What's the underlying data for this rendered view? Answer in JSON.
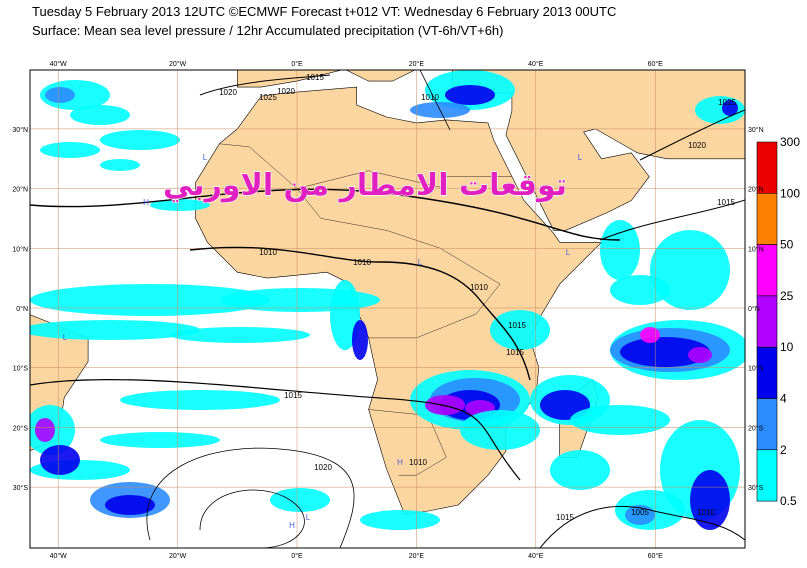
{
  "header": {
    "line1": "Tuesday 5 February 2013 12UTC ©ECMWF Forecast t+012 VT: Wednesday 6 February 2013 00UTC",
    "line2": "Surface: Mean sea level pressure / 12hr Accumulated precipitation (VT-6h/VT+6h)"
  },
  "overlay_text": "توقعات الامطار من الاوربي",
  "map": {
    "lon_labels": [
      "40°W",
      "20°W",
      "0°E",
      "20°E",
      "40°E",
      "60°E"
    ],
    "lat_labels": [
      "30°N",
      "20°N",
      "10°N",
      "0°N",
      "10°S",
      "20°S",
      "30°S"
    ],
    "isobar_labels": [
      "1015",
      "1020",
      "1025",
      "1020",
      "1010",
      "1025",
      "1020",
      "1015",
      "1010",
      "1010",
      "1010",
      "1015",
      "1015",
      "1015",
      "1010",
      "1020",
      "1015",
      "1005",
      "1010"
    ],
    "centers": [
      "H",
      "L",
      "L",
      "H",
      "L",
      "L",
      "H",
      "L",
      "L",
      "H"
    ]
  },
  "legend": {
    "labels": [
      "300",
      "100",
      "50",
      "25",
      "10",
      "4",
      "2",
      "0.5"
    ]
  }
}
